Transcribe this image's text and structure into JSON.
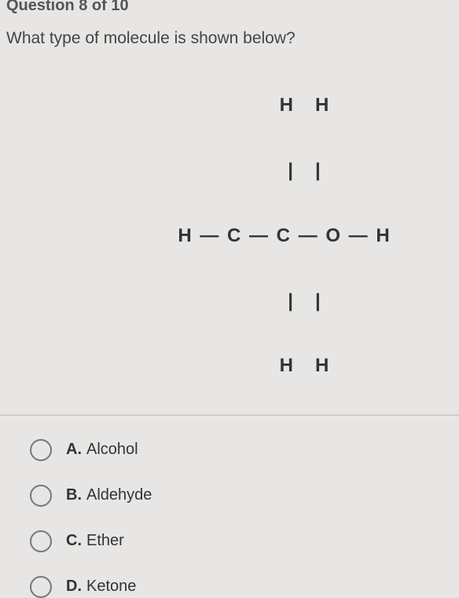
{
  "header": "Question 8 of 10",
  "question": "What type of molecule is shown below?",
  "molecule": {
    "line1": "      H   H",
    "line2": "      |   |",
    "line3": "H — C — C — O — H",
    "line4": "      |   |",
    "line5": "      H   H"
  },
  "options": [
    {
      "letter": "A.",
      "text": "Alcohol"
    },
    {
      "letter": "B.",
      "text": "Aldehyde"
    },
    {
      "letter": "C.",
      "text": "Ether"
    },
    {
      "letter": "D.",
      "text": "Ketone"
    }
  ]
}
